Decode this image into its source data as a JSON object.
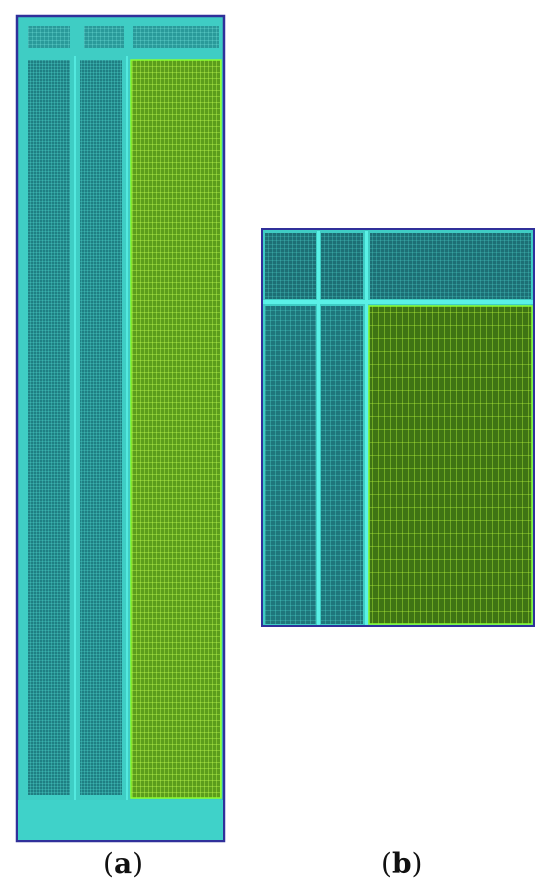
{
  "colors": {
    "background": "#ffffff",
    "outer_border": "#30309a",
    "frame_teal": "#3fcdc4",
    "bright_teal_line": "#53e9df",
    "dense_mesh_fill": "#1f7f83",
    "dense_mesh_line": "#4de3d6",
    "coarse_mesh_fill": "#6fba24",
    "coarse_mesh_line": "#b8ff40",
    "coarse_mesh_dark": "#2f5c10"
  },
  "panels": [
    {
      "id": "a",
      "caption": {
        "open": "(",
        "letter": "a",
        "close": ")"
      }
    },
    {
      "id": "b",
      "caption": {
        "open": "(",
        "letter": "b",
        "close": ")"
      }
    }
  ]
}
